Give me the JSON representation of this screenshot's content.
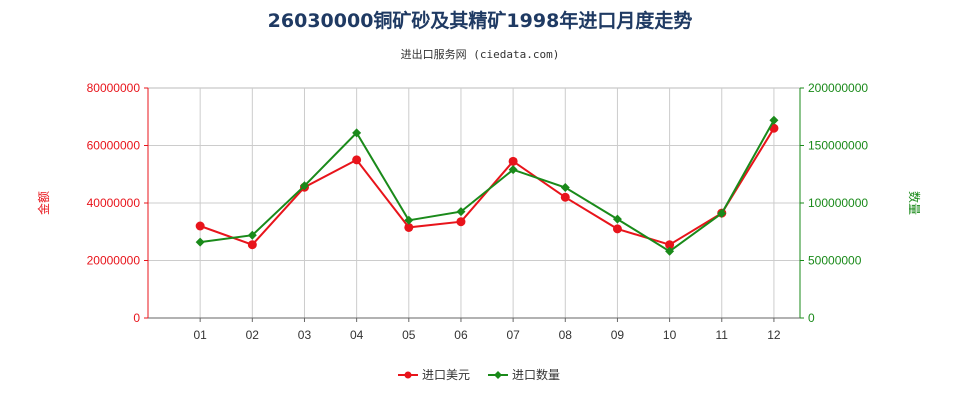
{
  "chart_data": {
    "type": "line",
    "title": "26030000铜矿砂及其精矿1998年进口月度走势",
    "subtitle": "进出口服务网 (ciedata.com)",
    "categories": [
      "01",
      "02",
      "03",
      "04",
      "05",
      "06",
      "07",
      "08",
      "09",
      "10",
      "11",
      "12"
    ],
    "series": [
      {
        "name": "进口美元",
        "axis": "left",
        "color": "#e8141b",
        "values": [
          32000000,
          25500000,
          45500000,
          55000000,
          31500000,
          33500000,
          54500000,
          42000000,
          31000000,
          25500000,
          36500000,
          66000000
        ]
      },
      {
        "name": "进口数量",
        "axis": "right",
        "color": "#1a8a1a",
        "values": [
          66000000,
          72000000,
          115000000,
          161000000,
          85000000,
          92500000,
          129000000,
          113500000,
          86000000,
          58000000,
          91000000,
          172000000
        ]
      }
    ],
    "y_left": {
      "label": "金额",
      "range": [
        0,
        80000000
      ],
      "ticks": [
        "0",
        "20000000",
        "40000000",
        "60000000",
        "80000000"
      ],
      "color": "#e8141b"
    },
    "y_right": {
      "label": "数量",
      "range": [
        0,
        200000000
      ],
      "ticks": [
        "0",
        "50000000",
        "100000000",
        "150000000",
        "200000000"
      ],
      "color": "#1a8a1a"
    },
    "grid": true,
    "legend_position": "bottom-center"
  }
}
